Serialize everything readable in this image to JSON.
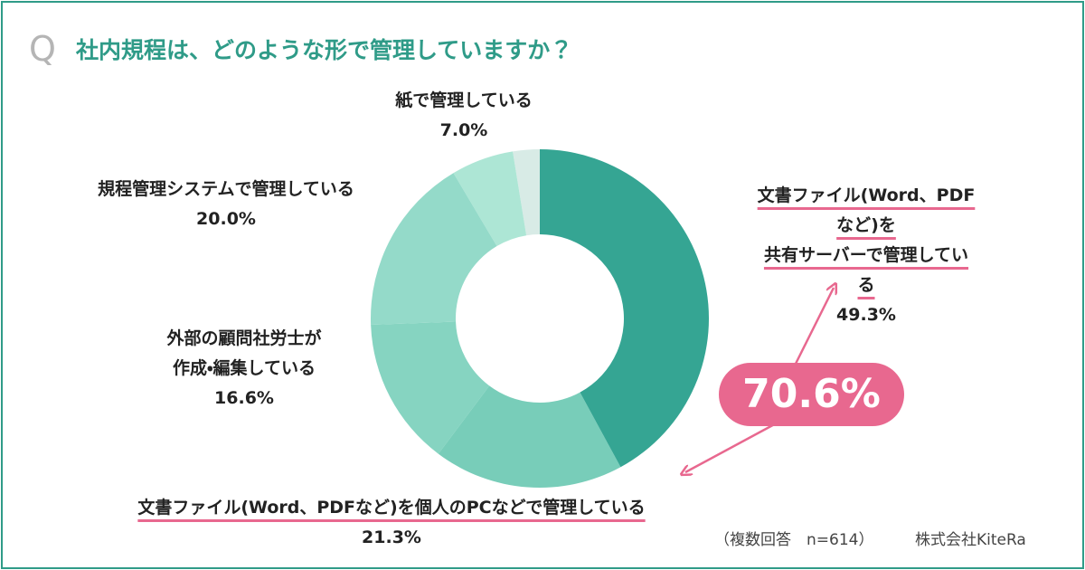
{
  "chart_data": {
    "type": "donut",
    "title_prefix": "Q",
    "title": "社内規程は、どのような形で管理していますか？",
    "categories": [
      "文書ファイル(Word、PDFなど)を\n共有サーバーで管理している",
      "文書ファイル(Word、PDFなど)を個人のPCなどで管理している",
      "外部の顧問社労士が\n作成・編集している",
      "規程管理システムで管理している",
      "紙で管理している",
      null
    ],
    "values": [
      49.3,
      21.3,
      16.6,
      20.0,
      7.0,
      3.0
    ],
    "value_labels": [
      "49.3%",
      "21.3%",
      "16.6%",
      "20.0%",
      "7.0%",
      null
    ],
    "colors": [
      "#35a593",
      "#78cdb9",
      "#86d4c1",
      "#94dac9",
      "#ade6d5",
      "#d8ebe6"
    ],
    "underlined": [
      true,
      true,
      false,
      false,
      false,
      false
    ],
    "highlight": "70.6%",
    "note": "（複数回答　n=614）",
    "source": "株式会社KiteRa"
  }
}
